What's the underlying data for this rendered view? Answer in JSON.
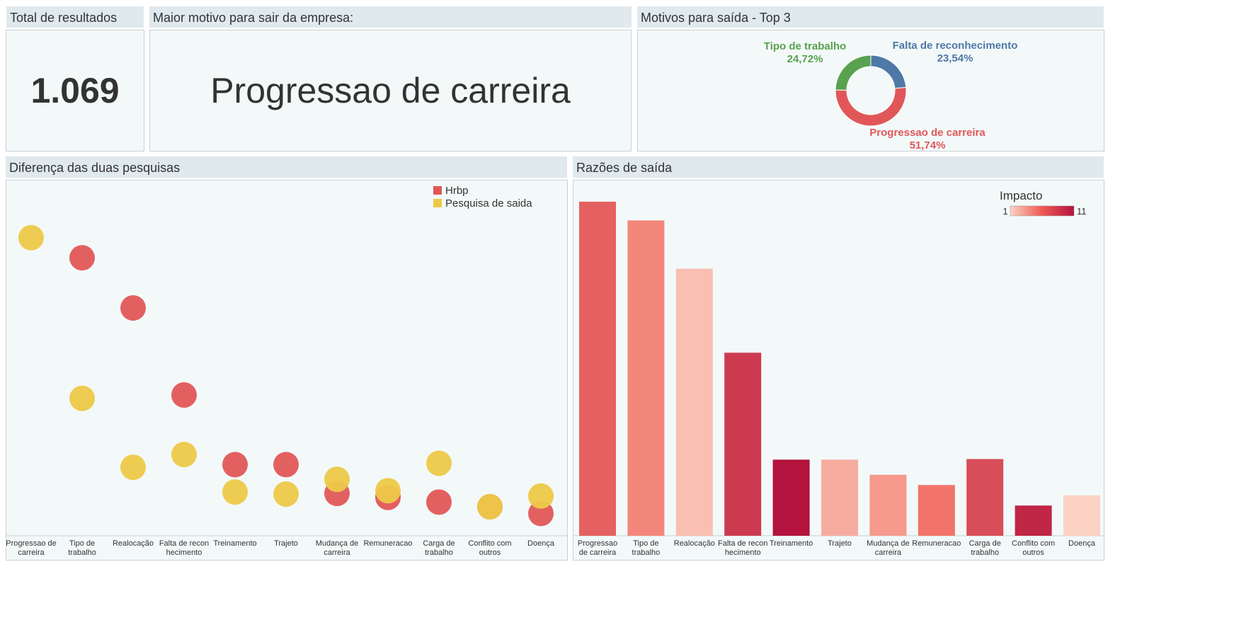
{
  "total": {
    "title": "Total de resultados",
    "value": "1.069"
  },
  "top_reason": {
    "title": "Maior motivo para sair da empresa:",
    "value": "Progressao de carreira"
  },
  "top3": {
    "title": "Motivos para saída - Top 3",
    "slices": [
      {
        "name": "Falta de reconhecimento",
        "pct": "23,54%",
        "value": 23.54,
        "color": "#4e79a7"
      },
      {
        "name": "Progressao de carreira",
        "pct": "51,74%",
        "value": 51.74,
        "color": "#e15759"
      },
      {
        "name": "Tipo de trabalho",
        "pct": "24,72%",
        "value": 24.72,
        "color": "#59a14f"
      }
    ]
  },
  "diff": {
    "title": "Diferença das duas pesquisas",
    "legend": [
      {
        "name": "Hrbp",
        "color": "#e15759"
      },
      {
        "name": "Pesquisa de saida",
        "color": "#edc948"
      }
    ]
  },
  "reasons": {
    "title": "Razões de saída",
    "legend_title": "Impacto",
    "legend_min": "1",
    "legend_max": "11"
  },
  "chart_data": [
    {
      "type": "pie",
      "title": "Motivos para saída - Top 3",
      "categories": [
        "Falta de reconhecimento",
        "Progressao de carreira",
        "Tipo de trabalho"
      ],
      "values": [
        23.54,
        51.74,
        24.72
      ]
    },
    {
      "type": "scatter",
      "title": "Diferença das duas pesquisas",
      "categories": [
        "Progressao de carreira",
        "Tipo de trabalho",
        "Realocação",
        "Falta de reconhecimento",
        "Treinamento",
        "Trajeto",
        "Mudança de carreira",
        "Remuneracao",
        "Carga de trabalho",
        "Conflito com outros",
        "Doença"
      ],
      "tick_labels": [
        [
          "Progressao de",
          "carreira"
        ],
        [
          "Tipo de",
          "trabalho"
        ],
        [
          "Realocação"
        ],
        [
          "Falta de recon",
          "hecimento"
        ],
        [
          "Treinamento"
        ],
        [
          "Trajeto"
        ],
        [
          "Mudança de",
          "carreira"
        ],
        [
          "Remuneracao"
        ],
        [
          "Carga de",
          "trabalho"
        ],
        [
          "Conflito com",
          "outros"
        ],
        [
          "Doença"
        ]
      ],
      "ylim": [
        0,
        480
      ],
      "grid": false,
      "legend_position": "top-right",
      "series": [
        {
          "name": "Pesquisa de saida",
          "color": "#edc948",
          "values": [
            440,
            200,
            97,
            116,
            60,
            57,
            79,
            62,
            103,
            38,
            54
          ]
        },
        {
          "name": "Hrbp",
          "color": "#e15759",
          "values": null,
          "values_list": [
            null,
            410,
            335,
            205,
            101,
            101,
            58,
            52,
            45,
            38,
            28
          ]
        }
      ]
    },
    {
      "type": "bar",
      "title": "Razões de saída",
      "categories": [
        "Progressao de carreira",
        "Tipo de trabalho",
        "Realocação",
        "Falta de reconhecimento",
        "Treinamento",
        "Trajeto",
        "Mudança de carreira",
        "Remuneracao",
        "Carga de trabalho",
        "Conflito com outros",
        "Doença"
      ],
      "tick_labels": [
        [
          "Progressao",
          "de carreira"
        ],
        [
          "Tipo de",
          "trabalho"
        ],
        [
          "Realocação"
        ],
        [
          "Falta de recon",
          "hecimento"
        ],
        [
          "Treinamento"
        ],
        [
          "Trajeto"
        ],
        [
          "Mudança de",
          "carreira"
        ],
        [
          "Remuneracao"
        ],
        [
          "Carga de",
          "trabalho"
        ],
        [
          "Conflito com",
          "outros"
        ],
        [
          "Doença"
        ]
      ],
      "values": [
        553,
        522,
        442,
        303,
        126,
        126,
        101,
        84,
        127,
        50,
        67
      ],
      "impact": [
        7,
        5,
        2,
        9,
        11,
        3,
        4,
        6,
        8,
        10,
        1
      ],
      "color_scale": [
        "#fbd2c4",
        "#b3133d"
      ],
      "ylim": [
        0,
        560
      ],
      "grid": false,
      "legend_position": "top-right"
    }
  ]
}
